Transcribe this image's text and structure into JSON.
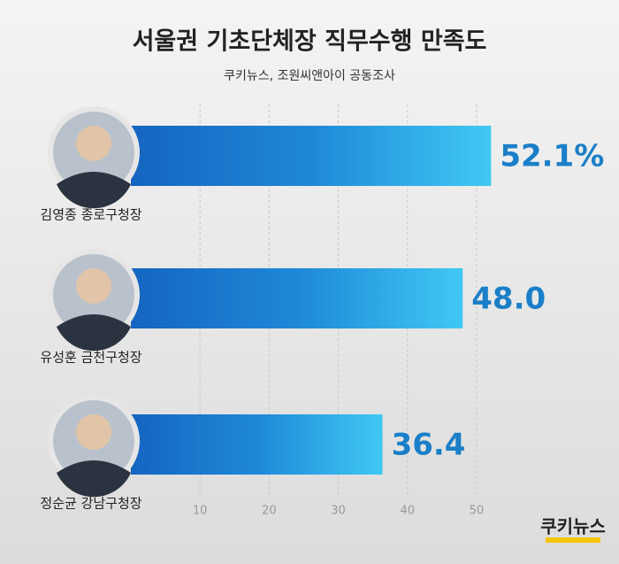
{
  "chart_data": {
    "type": "barh",
    "title": "서울권 기초단체장 직무수행 만족도",
    "subtitle": "쿠키뉴스, 조원씨앤아이 공동조사",
    "logo": "쿠키뉴스",
    "categories": [
      "김영종 종로구청장",
      "유성훈 금천구청장",
      "정순균 강남구청장"
    ],
    "values": [
      52.1,
      48.0,
      36.4
    ],
    "value_labels": [
      "52.1%",
      "48.0",
      "36.4"
    ],
    "color": "#1e88d8",
    "xlim": [
      0,
      55
    ],
    "xticks": [
      10,
      20,
      30,
      40,
      50
    ],
    "grid": true
  }
}
